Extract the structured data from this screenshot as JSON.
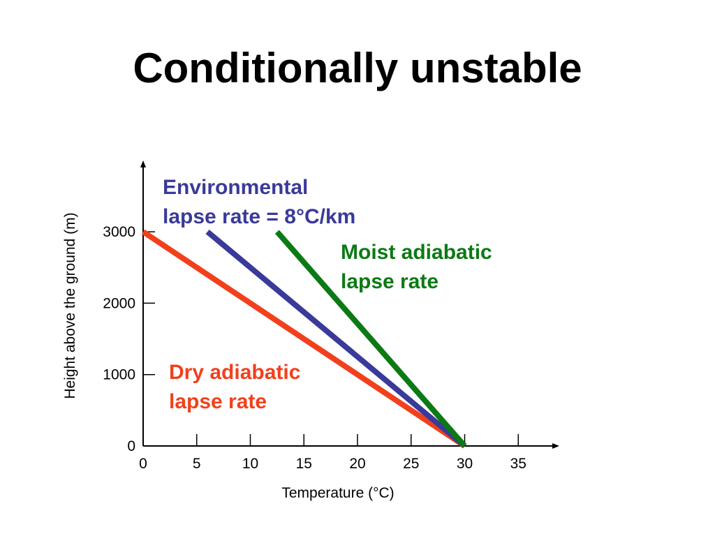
{
  "slide": {
    "title": "Conditionally unstable"
  },
  "chart_data": {
    "type": "line",
    "xlabel": "Temperature (°C)",
    "ylabel": "Height above the ground (m)",
    "x_ticks": [
      0,
      5,
      10,
      15,
      20,
      25,
      30,
      35
    ],
    "y_ticks": [
      0,
      1000,
      2000,
      3000
    ],
    "xlim": [
      0,
      38.5
    ],
    "ylim": [
      0,
      3950
    ],
    "grid": false,
    "series": [
      {
        "key": "dry",
        "name": "Dry adiabatic lapse rate",
        "label_lines": [
          "Dry adiabatic",
          "lapse rate"
        ],
        "color": "#f2401c",
        "points": [
          {
            "x": 0,
            "y": 3000
          },
          {
            "x": 30,
            "y": 0
          }
        ]
      },
      {
        "key": "env",
        "name": "Environmental lapse rate = 8°C/km",
        "label_lines": [
          "Environmental",
          "lapse rate = 8°C/km"
        ],
        "color": "#3a3a9a",
        "points": [
          {
            "x": 6,
            "y": 3000
          },
          {
            "x": 30,
            "y": 0
          }
        ]
      },
      {
        "key": "moist",
        "name": "Moist adiabatic lapse rate",
        "label_lines": [
          "Moist adiabatic",
          "lapse rate"
        ],
        "color": "#0b7a14",
        "points": [
          {
            "x": 12.5,
            "y": 3000
          },
          {
            "x": 30,
            "y": 0
          }
        ]
      }
    ]
  }
}
